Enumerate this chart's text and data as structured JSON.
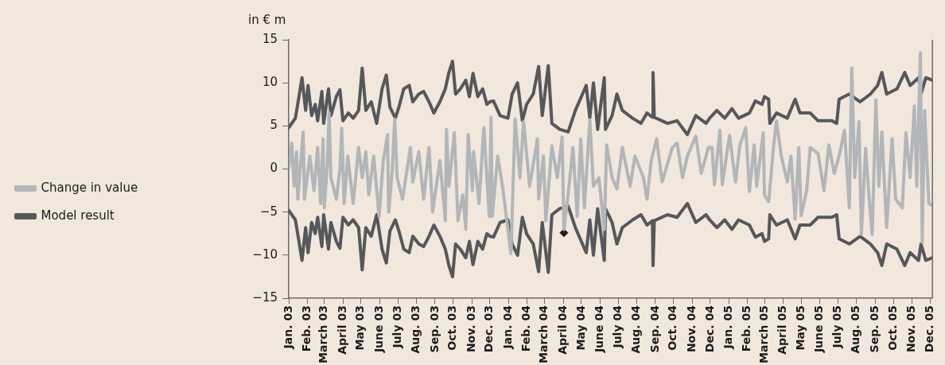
{
  "chart_data": {
    "type": "line",
    "ylabel": "in € m",
    "xlim": [
      "2003-01-01",
      "2005-12-05"
    ],
    "ylim": [
      -15,
      15
    ],
    "yticks": [
      15,
      10,
      5,
      0,
      {
        "value": -5,
        "label": "−5"
      },
      {
        "value": -10,
        "label": "−10"
      },
      {
        "value": -15,
        "label": "−15"
      }
    ],
    "xticks": [
      {
        "value": "2003-01-01",
        "label": "Jan. 03"
      },
      {
        "value": "2003-02-01",
        "label": "Feb. 03"
      },
      {
        "value": "2003-03-01",
        "label": "March 03"
      },
      {
        "value": "2003-04-01",
        "label": "April 03"
      },
      {
        "value": "2003-05-01",
        "label": "May 03"
      },
      {
        "value": "2003-06-01",
        "label": "June 03"
      },
      {
        "value": "2003-07-01",
        "label": "July 03"
      },
      {
        "value": "2003-08-01",
        "label": "Aug. 03"
      },
      {
        "value": "2003-09-01",
        "label": "Sep. 03"
      },
      {
        "value": "2003-10-01",
        "label": "Oct. 03"
      },
      {
        "value": "2003-11-01",
        "label": "Nov. 03"
      },
      {
        "value": "2003-12-01",
        "label": "Dec. 03"
      },
      {
        "value": "2004-01-01",
        "label": "Jan. 04"
      },
      {
        "value": "2004-02-01",
        "label": "Feb. 04"
      },
      {
        "value": "2004-03-01",
        "label": "March 04"
      },
      {
        "value": "2004-04-01",
        "label": "April 04"
      },
      {
        "value": "2004-05-01",
        "label": "May 04"
      },
      {
        "value": "2004-06-01",
        "label": "June 04"
      },
      {
        "value": "2004-07-01",
        "label": "July 04"
      },
      {
        "value": "2004-08-01",
        "label": "Aug. 04"
      },
      {
        "value": "2004-09-01",
        "label": "Sep. 04"
      },
      {
        "value": "2004-10-01",
        "label": "Oct. 04"
      },
      {
        "value": "2004-11-01",
        "label": "Nov. 04"
      },
      {
        "value": "2004-12-01",
        "label": "Dec. 04"
      },
      {
        "value": "2005-01-01",
        "label": "Jan. 05"
      },
      {
        "value": "2005-02-01",
        "label": "Feb. 05"
      },
      {
        "value": "2005-03-01",
        "label": "March 05"
      },
      {
        "value": "2005-04-01",
        "label": "April 05"
      },
      {
        "value": "2005-05-01",
        "label": "May 05"
      },
      {
        "value": "2005-06-01",
        "label": "June 05"
      },
      {
        "value": "2005-07-01",
        "label": "July 05"
      },
      {
        "value": "2005-08-01",
        "label": "Aug. 05"
      },
      {
        "value": "2005-09-01",
        "label": "Sep. 05"
      },
      {
        "value": "2005-10-01",
        "label": "Oct. 05"
      },
      {
        "value": "2005-11-01",
        "label": "Nov. 05"
      },
      {
        "value": "2005-12-01",
        "label": "Dec. 05"
      }
    ],
    "grid": false,
    "legend": "left",
    "marker": "none",
    "line_style": "solid",
    "series": [
      {
        "name": "Change in value",
        "color": "#b2b6b9",
        "x": [
          "2003-01-01",
          "2003-01-06",
          "2003-01-10",
          "2003-01-14",
          "2003-01-16",
          "2003-01-25",
          "2003-01-27",
          "2003-02-05",
          "2003-02-12",
          "2003-02-18",
          "2003-02-23",
          "2003-02-27",
          "2003-03-01",
          "2003-03-06",
          "2003-03-09",
          "2003-03-12",
          "2003-03-21",
          "2003-03-27",
          "2003-03-30",
          "2003-04-03",
          "2003-04-09",
          "2003-04-18",
          "2003-04-27",
          "2003-05-03",
          "2003-05-09",
          "2003-05-14",
          "2003-05-22",
          "2003-05-31",
          "2003-06-07",
          "2003-06-14",
          "2003-06-16",
          "2003-06-22",
          "2003-06-26",
          "2003-06-30",
          "2003-07-09",
          "2003-07-22",
          "2003-07-26",
          "2003-08-05",
          "2003-08-13",
          "2003-08-22",
          "2003-08-28",
          "2003-09-09",
          "2003-09-18",
          "2003-09-20",
          "2003-09-24",
          "2003-10-03",
          "2003-10-09",
          "2003-10-17",
          "2003-10-22",
          "2003-10-26",
          "2003-11-02",
          "2003-11-04",
          "2003-11-13",
          "2003-11-21",
          "2003-11-30",
          "2003-12-03",
          "2003-12-05",
          "2003-12-14",
          "2003-12-22",
          "2004-01-05",
          "2004-01-12",
          "2004-01-20",
          "2004-01-26",
          "2004-02-05",
          "2004-02-18",
          "2004-02-20",
          "2004-02-28",
          "2004-03-03",
          "2004-03-13",
          "2004-03-22",
          "2004-03-30",
          "2004-04-02",
          "2004-04-09",
          "2004-04-17",
          "2004-04-24",
          "2004-04-30",
          "2004-05-06",
          "2004-05-15",
          "2004-05-21",
          "2004-05-30",
          "2004-06-08",
          "2004-06-12",
          "2004-06-21",
          "2004-06-29",
          "2004-07-08",
          "2004-07-21",
          "2004-07-29",
          "2004-08-12",
          "2004-08-18",
          "2004-08-25",
          "2004-09-03",
          "2004-09-12",
          "2004-09-29",
          "2004-10-07",
          "2004-10-16",
          "2004-10-24",
          "2004-11-07",
          "2004-11-16",
          "2004-11-28",
          "2004-12-04",
          "2004-12-08",
          "2004-12-17",
          "2004-12-21",
          "2005-01-02",
          "2005-01-12",
          "2005-01-19",
          "2005-01-29",
          "2005-02-04",
          "2005-02-12",
          "2005-02-16",
          "2005-02-27",
          "2005-03-01",
          "2005-03-08",
          "2005-03-16",
          "2005-03-21",
          "2005-03-29",
          "2005-04-08",
          "2005-04-14",
          "2005-04-21",
          "2005-04-27",
          "2005-05-01",
          "2005-05-10",
          "2005-05-16",
          "2005-05-29",
          "2005-06-08",
          "2005-06-16",
          "2005-06-25",
          "2005-07-03",
          "2005-07-12",
          "2005-07-20",
          "2005-07-24",
          "2005-07-29",
          "2005-08-05",
          "2005-08-09",
          "2005-08-16",
          "2005-08-22",
          "2005-08-27",
          "2005-09-02",
          "2005-09-07",
          "2005-09-12",
          "2005-09-20",
          "2005-09-29",
          "2005-10-05",
          "2005-10-16",
          "2005-10-22",
          "2005-10-29",
          "2005-11-05",
          "2005-11-09",
          "2005-11-15",
          "2005-11-18",
          "2005-11-22",
          "2005-11-29",
          "2005-12-04"
        ],
        "values": [
          0,
          3.0,
          -2.0,
          2,
          -3.5,
          4.3,
          -3.5,
          1.5,
          -2.5,
          2.5,
          -4.0,
          3.5,
          -4.5,
          0.5,
          6.5,
          -1,
          -3.5,
          0,
          4.7,
          -4,
          1.5,
          -4,
          2.5,
          -1,
          2,
          -3,
          1.5,
          -5.5,
          1,
          4.0,
          -5.0,
          0,
          5.8,
          -1,
          -3.5,
          2.5,
          -1.5,
          2,
          -3.5,
          2.5,
          -5,
          1.0,
          -6,
          4.6,
          -2,
          4.2,
          -6,
          -3,
          -7.0,
          4.0,
          -2.5,
          2,
          -4,
          4.8,
          -5.5,
          6.0,
          -5.5,
          1.5,
          -2,
          -9.8,
          5.8,
          -1,
          5.5,
          -2,
          3.5,
          -3.5,
          1.5,
          -6.0,
          2.7,
          -1,
          3.7,
          -7.0,
          -3,
          2.5,
          -5.5,
          3.5,
          -4.5,
          5.7,
          -2,
          -1,
          -7.0,
          2.8,
          -1,
          -2.3,
          2.5,
          -2,
          1.5,
          -1,
          -3.5,
          1,
          3.5,
          -1.5,
          2.5,
          3,
          -1,
          1.5,
          3.8,
          -0.5,
          2.5,
          2.5,
          -1.8,
          4.5,
          -1.8,
          3.9,
          -1.5,
          2.7,
          4.8,
          -2.6,
          2.8,
          -2.0,
          4.2,
          -3.0,
          -3.8,
          2.5,
          5.6,
          1.5,
          -1.5,
          1.5,
          -5.8,
          2.5,
          -5.4,
          -2.5,
          2.5,
          1.8,
          -2.5,
          2.8,
          -0.5,
          1.5,
          4.5,
          -4.5,
          11.7,
          -1,
          5.5,
          -7.6,
          2.4,
          -3.5,
          -7.6,
          8.0,
          -2,
          4.3,
          -6.8,
          3.5,
          -3.5,
          -4.5,
          4.2,
          -1,
          7.3,
          -2,
          13.5,
          -8.5,
          6.8,
          -4.0,
          -4.2
        ]
      },
      {
        "name": "Model result",
        "color": "#55585b",
        "x": [
          "2003-01-01",
          "2003-01-12",
          "2003-01-18",
          "2003-01-23",
          "2003-01-29",
          "2003-02-02",
          "2003-02-08",
          "2003-02-14",
          "2003-02-18",
          "2003-02-25",
          "2003-02-28",
          "2003-03-08",
          "2003-03-12",
          "2003-03-21",
          "2003-03-27",
          "2003-04-01",
          "2003-04-10",
          "2003-04-18",
          "2003-04-27",
          "2003-05-03",
          "2003-05-09",
          "2003-05-18",
          "2003-05-27",
          "2003-06-05",
          "2003-06-12",
          "2003-06-18",
          "2003-06-27",
          "2003-07-03",
          "2003-07-11",
          "2003-07-20",
          "2003-07-26",
          "2003-08-05",
          "2003-08-13",
          "2003-08-22",
          "2003-08-30",
          "2003-09-09",
          "2003-09-18",
          "2003-09-24",
          "2003-09-30",
          "2003-10-05",
          "2003-10-13",
          "2003-10-22",
          "2003-10-28",
          "2003-11-03",
          "2003-11-11",
          "2003-11-19",
          "2003-11-26",
          "2003-12-01",
          "2003-12-07",
          "2003-12-18",
          "2003-12-31",
          "2004-01-07",
          "2004-01-16",
          "2004-01-24",
          "2004-01-31",
          "2004-02-11",
          "2004-02-20",
          "2004-02-26",
          "2004-03-07",
          "2004-03-13",
          "2004-03-26",
          "2004-04-09",
          "2004-04-21",
          "2004-05-09",
          "2004-05-15",
          "2004-05-21",
          "2004-05-28",
          "2004-06-08",
          "2004-06-10",
          "2004-06-21",
          "2004-06-29",
          "2004-07-08",
          "2004-07-25",
          "2004-08-08",
          "2004-08-18",
          "2004-08-27",
          "2004-08-28",
          "2004-08-30",
          "2004-09-21",
          "2004-10-07",
          "2004-10-24",
          "2004-11-07",
          "2004-11-24",
          "2004-11-30",
          "2004-12-12",
          "2004-12-25",
          "2005-01-06",
          "2005-01-17",
          "2005-02-04",
          "2005-02-14",
          "2005-02-25",
          "2005-03-01",
          "2005-03-08",
          "2005-03-10",
          "2005-03-21",
          "2005-04-08",
          "2005-04-21",
          "2005-04-29",
          "2005-05-16",
          "2005-05-29",
          "2005-06-21",
          "2005-06-29",
          "2005-07-03",
          "2005-07-20",
          "2005-08-07",
          "2005-08-24",
          "2005-09-05",
          "2005-09-12",
          "2005-09-20",
          "2005-10-07",
          "2005-10-20",
          "2005-10-29",
          "2005-11-12",
          "2005-11-16",
          "2005-11-24",
          "2005-12-05"
        ],
        "values": [
          4.8,
          5.9,
          8.4,
          10.6,
          6.8,
          9.7,
          6.2,
          7.5,
          5.6,
          9.0,
          5.3,
          9.3,
          6.2,
          8.4,
          9.2,
          5.6,
          6.5,
          5.9,
          6.8,
          11.7,
          6.8,
          7.8,
          5.3,
          9.3,
          10.9,
          7.2,
          5.9,
          7.2,
          9.3,
          9.7,
          7.8,
          8.7,
          9.0,
          7.8,
          6.5,
          7.8,
          9.3,
          11.2,
          12.5,
          8.7,
          9.3,
          10.3,
          8.4,
          11.1,
          8.4,
          9.3,
          7.5,
          7.8,
          7.9,
          6.2,
          5.9,
          8.7,
          10.0,
          5.6,
          7.5,
          8.7,
          11.9,
          6.2,
          12.0,
          5.3,
          4.6,
          4.3,
          6.8,
          9.7,
          5.9,
          10.0,
          4.6,
          10.6,
          4.6,
          6.2,
          8.7,
          6.8,
          5.9,
          5.3,
          6.5,
          6.0,
          11.2,
          6.0,
          5.3,
          5.6,
          4.0,
          6.2,
          5.3,
          5.9,
          6.8,
          5.9,
          7.0,
          5.9,
          6.5,
          7.9,
          7.5,
          8.4,
          8.1,
          5.3,
          6.5,
          5.9,
          8.1,
          6.5,
          6.5,
          5.6,
          5.6,
          5.3,
          8.1,
          8.7,
          7.8,
          8.7,
          9.7,
          11.2,
          8.7,
          9.3,
          11.2,
          9.7,
          10.6,
          8.7,
          10.6,
          10.3
        ]
      },
      {
        "color": "#55585b",
        "x": [
          "2003-01-01",
          "2003-01-12",
          "2003-01-18",
          "2003-01-23",
          "2003-01-29",
          "2003-02-02",
          "2003-02-08",
          "2003-02-14",
          "2003-02-18",
          "2003-02-25",
          "2003-02-28",
          "2003-03-08",
          "2003-03-12",
          "2003-03-21",
          "2003-03-27",
          "2003-04-01",
          "2003-04-10",
          "2003-04-18",
          "2003-04-27",
          "2003-05-03",
          "2003-05-09",
          "2003-05-18",
          "2003-05-27",
          "2003-06-05",
          "2003-06-12",
          "2003-06-18",
          "2003-06-27",
          "2003-07-03",
          "2003-07-11",
          "2003-07-20",
          "2003-07-26",
          "2003-08-05",
          "2003-08-13",
          "2003-08-22",
          "2003-08-30",
          "2003-09-09",
          "2003-09-18",
          "2003-09-24",
          "2003-09-30",
          "2003-10-05",
          "2003-10-13",
          "2003-10-22",
          "2003-10-28",
          "2003-11-03",
          "2003-11-11",
          "2003-11-19",
          "2003-11-26",
          "2003-12-01",
          "2003-12-07",
          "2003-12-18",
          "2003-12-31",
          "2004-01-07",
          "2004-01-16",
          "2004-01-24",
          "2004-01-31",
          "2004-02-11",
          "2004-02-20",
          "2004-02-26",
          "2004-03-07",
          "2004-03-13",
          "2004-03-26",
          "2004-04-09",
          "2004-04-21",
          "2004-05-09",
          "2004-05-15",
          "2004-05-21",
          "2004-05-28",
          "2004-06-08",
          "2004-06-10",
          "2004-06-21",
          "2004-06-29",
          "2004-07-08",
          "2004-07-25",
          "2004-08-08",
          "2004-08-18",
          "2004-08-27",
          "2004-08-28",
          "2004-08-30",
          "2004-09-21",
          "2004-10-07",
          "2004-10-24",
          "2004-11-07",
          "2004-11-24",
          "2004-11-30",
          "2004-12-12",
          "2004-12-25",
          "2005-01-06",
          "2005-01-17",
          "2005-02-04",
          "2005-02-14",
          "2005-02-25",
          "2005-03-01",
          "2005-03-08",
          "2005-03-10",
          "2005-03-21",
          "2005-04-08",
          "2005-04-21",
          "2005-04-29",
          "2005-05-16",
          "2005-05-29",
          "2005-06-21",
          "2005-06-29",
          "2005-07-03",
          "2005-07-20",
          "2005-08-07",
          "2005-08-24",
          "2005-09-05",
          "2005-09-12",
          "2005-09-20",
          "2005-10-07",
          "2005-10-20",
          "2005-10-29",
          "2005-11-12",
          "2005-11-16",
          "2005-11-24",
          "2005-12-05"
        ],
        "values": [
          -4.8,
          -5.9,
          -8.4,
          -10.6,
          -6.8,
          -9.7,
          -6.2,
          -7.5,
          -5.6,
          -9.0,
          -5.3,
          -9.3,
          -6.2,
          -8.4,
          -9.2,
          -5.6,
          -6.5,
          -5.9,
          -6.8,
          -11.7,
          -6.8,
          -7.8,
          -5.3,
          -9.3,
          -10.9,
          -7.2,
          -5.9,
          -7.2,
          -9.3,
          -9.7,
          -7.8,
          -8.7,
          -9.0,
          -7.8,
          -6.5,
          -7.8,
          -9.3,
          -11.2,
          -12.5,
          -8.7,
          -9.3,
          -10.3,
          -8.4,
          -11.1,
          -8.4,
          -9.3,
          -7.5,
          -7.8,
          -7.9,
          -6.2,
          -5.9,
          -8.7,
          -10.0,
          -5.6,
          -7.5,
          -8.7,
          -11.9,
          -6.2,
          -12.0,
          -5.3,
          -4.6,
          -4.3,
          -6.8,
          -9.7,
          -5.9,
          -10.0,
          -4.6,
          -10.6,
          -4.6,
          -6.2,
          -8.7,
          -6.8,
          -5.9,
          -5.3,
          -6.5,
          -6.0,
          -11.2,
          -6.0,
          -5.3,
          -5.6,
          -4.0,
          -6.2,
          -5.3,
          -5.9,
          -6.8,
          -5.9,
          -7.0,
          -5.9,
          -6.5,
          -7.9,
          -7.5,
          -8.4,
          -8.1,
          -5.3,
          -6.5,
          -5.9,
          -8.1,
          -6.5,
          -6.5,
          -5.6,
          -5.6,
          -5.3,
          -8.1,
          -8.7,
          -7.8,
          -8.7,
          -9.7,
          -11.2,
          -8.7,
          -9.3,
          -11.2,
          -9.7,
          -10.6,
          -8.7,
          -10.6,
          -10.3
        ]
      },
      {
        "type": "scatter",
        "marker": "diamond",
        "color": "#231f20",
        "x": [
          "2004-04-02"
        ],
        "values": [
          -7.4
        ]
      }
    ]
  }
}
